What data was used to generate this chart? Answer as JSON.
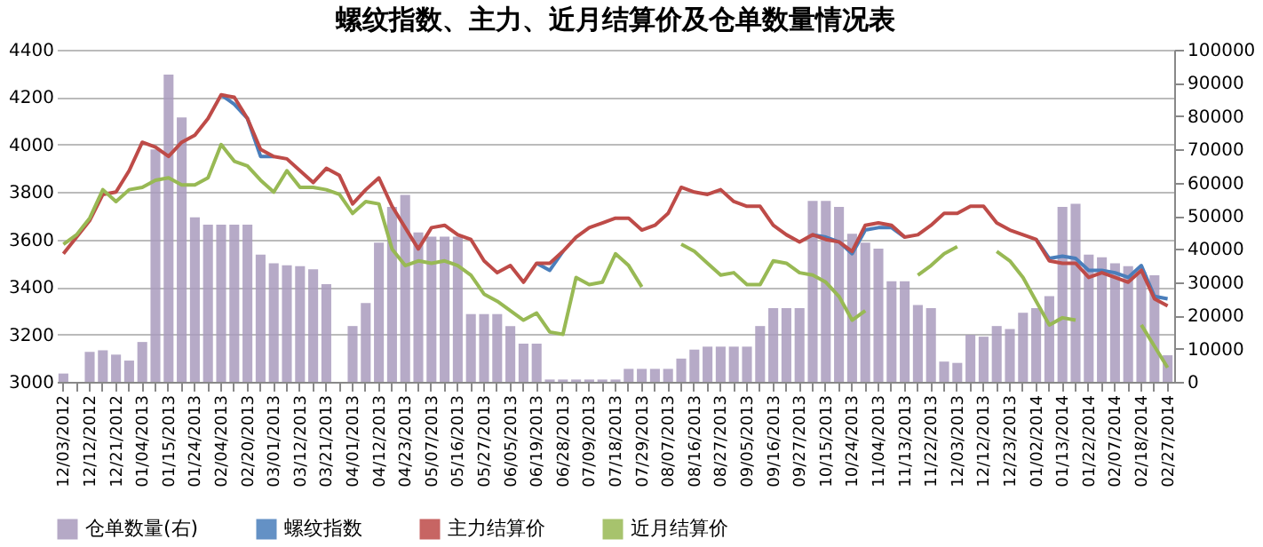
{
  "chart_data": {
    "type": "line",
    "title": "螺纹指数、主力、近月结算价及仓单数量情况表",
    "categories": [
      "12/03/2012",
      null,
      "12/12/2012",
      null,
      "12/21/2012",
      null,
      "01/04/2013",
      null,
      "01/15/2013",
      null,
      "01/24/2013",
      null,
      "02/04/2013",
      null,
      "02/20/2013",
      null,
      "03/01/2013",
      null,
      "03/12/2013",
      null,
      "03/21/2013",
      null,
      "04/01/2013",
      null,
      "04/12/2013",
      null,
      "04/23/2013",
      null,
      "05/07/2013",
      null,
      "05/16/2013",
      null,
      "05/27/2013",
      null,
      "06/05/2013",
      null,
      "06/19/2013",
      null,
      "06/28/2013",
      null,
      "07/09/2013",
      null,
      "07/18/2013",
      null,
      "07/29/2013",
      null,
      "08/07/2013",
      null,
      "08/16/2013",
      null,
      "08/27/2013",
      null,
      "09/05/2013",
      null,
      "09/16/2013",
      null,
      "09/27/2013",
      null,
      "10/15/2013",
      null,
      "10/24/2013",
      null,
      "11/04/2013",
      null,
      "11/13/2013",
      null,
      "11/22/2013",
      null,
      "12/03/2013",
      null,
      "12/12/2013",
      null,
      "12/23/2013",
      null,
      "01/02/2014",
      null,
      "01/13/2014",
      null,
      "01/22/2014",
      null,
      "02/07/2014",
      null,
      "02/18/2014",
      null,
      "02/27/2014"
    ],
    "series": [
      {
        "name": "仓单数量(右)",
        "type": "bar",
        "axis": "y2",
        "color": "#a99bbd",
        "values": [
          2500,
          0,
          9000,
          9500,
          8200,
          6400,
          12000,
          70000,
          92500,
          79600,
          49500,
          47300,
          47300,
          47300,
          47300,
          38300,
          35700,
          35100,
          34800,
          33900,
          29400,
          0,
          16800,
          23700,
          41900,
          52700,
          56300,
          45000,
          43700,
          43700,
          43700,
          20400,
          20400,
          20400,
          16800,
          11500,
          11500,
          700,
          700,
          700,
          700,
          700,
          700,
          3900,
          3900,
          3900,
          3900,
          7000,
          9700,
          10600,
          10600,
          10600,
          10600,
          16800,
          22200,
          22200,
          22200,
          54500,
          54500,
          52700,
          44600,
          41900,
          40100,
          30300,
          30300,
          23100,
          22200,
          6100,
          5700,
          14200,
          13600,
          16800,
          15900,
          20800,
          22200,
          25800,
          52700,
          53600,
          38300,
          37500,
          35700,
          34800,
          33000,
          32100,
          8000
        ]
      },
      {
        "name": "螺纹指数",
        "color": "#4a7ebb",
        "values": [
          null,
          null,
          null,
          null,
          null,
          null,
          null,
          null,
          null,
          null,
          null,
          null,
          4210,
          4170,
          4110,
          3950,
          3950,
          null,
          null,
          null,
          null,
          null,
          null,
          null,
          null,
          null,
          null,
          null,
          null,
          null,
          null,
          null,
          null,
          null,
          null,
          null,
          3500,
          3470,
          3550,
          null,
          null,
          null,
          null,
          null,
          null,
          null,
          null,
          null,
          null,
          null,
          null,
          null,
          null,
          null,
          null,
          null,
          null,
          3620,
          3610,
          3590,
          3540,
          3640,
          3650,
          3650,
          3610,
          null,
          null,
          null,
          null,
          null,
          null,
          null,
          null,
          null,
          3600,
          3520,
          3530,
          3520,
          3470,
          3470,
          3460,
          3440,
          3490,
          3360,
          3350
        ]
      },
      {
        "name": "主力结算价",
        "color": "#be4b48",
        "values": [
          3540,
          3610,
          3680,
          3790,
          3800,
          3890,
          4010,
          3990,
          3950,
          4010,
          4040,
          4110,
          4210,
          4200,
          4110,
          3980,
          3950,
          3940,
          3890,
          3840,
          3900,
          3870,
          3750,
          3810,
          3860,
          3740,
          3650,
          3560,
          3650,
          3660,
          3620,
          3600,
          3510,
          3460,
          3490,
          3420,
          3500,
          3500,
          3550,
          3610,
          3650,
          3670,
          3690,
          3690,
          3640,
          3660,
          3710,
          3820,
          3800,
          3790,
          3810,
          3760,
          3740,
          3740,
          3660,
          3620,
          3590,
          3620,
          3600,
          3590,
          3550,
          3660,
          3670,
          3660,
          3610,
          3620,
          3660,
          3710,
          3710,
          3740,
          3740,
          3670,
          3640,
          3620,
          3600,
          3510,
          3500,
          3500,
          3440,
          3460,
          3440,
          3420,
          3470,
          3350,
          3320
        ]
      },
      {
        "name": "近月结算价",
        "color": "#98b954",
        "values": [
          3580,
          3620,
          3690,
          3810,
          3760,
          3810,
          3820,
          3850,
          3860,
          3830,
          3830,
          3860,
          4000,
          3930,
          3910,
          3850,
          3800,
          3890,
          3820,
          3820,
          3810,
          3790,
          3710,
          3760,
          3750,
          3560,
          3490,
          3510,
          3500,
          3510,
          3490,
          3450,
          3370,
          3340,
          3300,
          3260,
          3290,
          3210,
          3200,
          3440,
          3410,
          3420,
          3540,
          3490,
          3400,
          null,
          null,
          3580,
          3550,
          3500,
          3450,
          3460,
          3410,
          3410,
          3510,
          3500,
          3460,
          3450,
          3420,
          3360,
          3260,
          3300,
          null,
          null,
          null,
          3450,
          3490,
          3540,
          3570,
          null,
          null,
          3550,
          3510,
          3440,
          3340,
          3240,
          3270,
          3260,
          null,
          null,
          null,
          null,
          3240,
          3150,
          3060
        ]
      }
    ],
    "ylim": [
      3000,
      4400
    ],
    "yticks": [
      3000,
      3200,
      3400,
      3600,
      3800,
      4000,
      4200,
      4400
    ],
    "y2lim": [
      0,
      100000
    ],
    "y2ticks": [
      0,
      10000,
      20000,
      30000,
      40000,
      50000,
      60000,
      70000,
      80000,
      90000,
      100000
    ],
    "grid": "y",
    "legend": "bottom"
  }
}
